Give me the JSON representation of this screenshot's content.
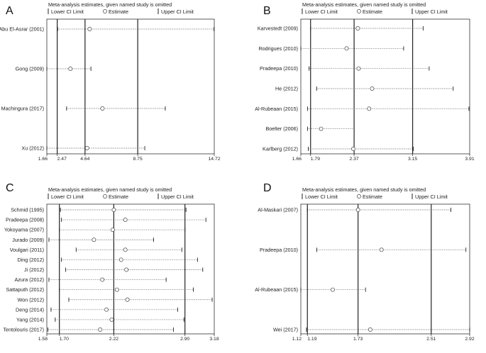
{
  "chart_data": [
    {
      "type": "sensitivity-forest",
      "panel_label": "A",
      "title": "Meta-analysis estimates, given named study is omitted",
      "legend": [
        "Lower CI Limit",
        "Estimate",
        "Upper CI Limit"
      ],
      "xlim": [
        1.66,
        14.72
      ],
      "tick_labels": [
        "1.66",
        "2.47",
        "4.64",
        "8.75",
        "14.72"
      ],
      "tick_values": [
        1.66,
        2.47,
        4.64,
        8.75,
        14.72
      ],
      "reference_lines": [
        2.47,
        4.64,
        8.75
      ],
      "studies": [
        {
          "name": "Abu El-Asrar (2001)",
          "estimate": 5.0,
          "lower": 2.5,
          "upper": 14.7
        },
        {
          "name": "Gong (2009)",
          "estimate": 3.5,
          "lower": 1.66,
          "upper": 5.1
        },
        {
          "name": "Machingura (2017)",
          "estimate": 6.0,
          "lower": 3.2,
          "upper": 10.9
        },
        {
          "name": "Xu (2012)",
          "estimate": 4.8,
          "lower": 1.66,
          "upper": 9.3
        }
      ]
    },
    {
      "type": "sensitivity-forest",
      "panel_label": "B",
      "title": "Meta-analysis estimates, given named study is omitted",
      "legend": [
        "Lower CI Limit",
        "Estimate",
        "Upper CI Limit"
      ],
      "xlim": [
        1.66,
        3.91
      ],
      "tick_labels": [
        "1.66",
        "1.79",
        "2.37",
        "3.15",
        "3.91"
      ],
      "tick_values": [
        1.66,
        1.79,
        2.37,
        3.15,
        3.91
      ],
      "reference_lines": [
        1.79,
        2.37,
        3.15
      ],
      "studies": [
        {
          "name": "Karvestedt (2009)",
          "estimate": 2.42,
          "lower": 1.79,
          "upper": 3.29
        },
        {
          "name": "Rodrigues (2010)",
          "estimate": 2.27,
          "lower": 1.66,
          "upper": 3.03
        },
        {
          "name": "Pradeepa (2010)",
          "estimate": 2.43,
          "lower": 1.77,
          "upper": 3.37
        },
        {
          "name": "He (2012)",
          "estimate": 2.61,
          "lower": 1.87,
          "upper": 3.69
        },
        {
          "name": "Al-Rubeaan (2015)",
          "estimate": 2.57,
          "lower": 1.75,
          "upper": 3.9
        },
        {
          "name": "Boelter (2006)",
          "estimate": 1.93,
          "lower": 1.75,
          "upper": 2.37
        },
        {
          "name": "Karlberg (2012)",
          "estimate": 2.36,
          "lower": 1.76,
          "upper": 3.16
        }
      ]
    },
    {
      "type": "sensitivity-forest",
      "panel_label": "C",
      "title": "Meta-analysis estimates, given named study is omitted",
      "legend": [
        "Lower CI Limit",
        "Estimate",
        "Upper CI Limit"
      ],
      "xlim": [
        1.58,
        3.18
      ],
      "tick_labels": [
        "1.58",
        "1.70",
        "2.22",
        "2.90",
        "3.18"
      ],
      "tick_values": [
        1.58,
        1.7,
        2.22,
        2.9,
        3.18
      ],
      "reference_lines": [
        1.7,
        2.22,
        2.9
      ],
      "studies": [
        {
          "name": "Schmid (1995)",
          "estimate": 2.22,
          "lower": 1.71,
          "upper": 2.91
        },
        {
          "name": "Pradeepa (2008)",
          "estimate": 2.33,
          "lower": 1.72,
          "upper": 3.1
        },
        {
          "name": "Yokoyama (2007)",
          "estimate": 2.21,
          "lower": 1.7,
          "upper": 2.9
        },
        {
          "name": "Jurado (2009)",
          "estimate": 2.03,
          "lower": 1.6,
          "upper": 2.6
        },
        {
          "name": "Voulgari (2011)",
          "estimate": 2.33,
          "lower": 1.86,
          "upper": 2.87
        },
        {
          "name": "Ding (2012)",
          "estimate": 2.29,
          "lower": 1.72,
          "upper": 3.02
        },
        {
          "name": "Ji (2012)",
          "estimate": 2.34,
          "lower": 1.76,
          "upper": 3.07
        },
        {
          "name": "Azura (2012)",
          "estimate": 2.11,
          "lower": 1.6,
          "upper": 2.72
        },
        {
          "name": "Sattaputh (2012)",
          "estimate": 2.25,
          "lower": 1.7,
          "upper": 2.98
        },
        {
          "name": "Won (2012)",
          "estimate": 2.35,
          "lower": 1.79,
          "upper": 3.16
        },
        {
          "name": "Deng (2014)",
          "estimate": 2.15,
          "lower": 1.62,
          "upper": 2.83
        },
        {
          "name": "Yang (2014)",
          "estimate": 2.2,
          "lower": 1.66,
          "upper": 2.89
        },
        {
          "name": "Tentolouris (2017)",
          "estimate": 2.09,
          "lower": 1.59,
          "upper": 2.79
        }
      ]
    },
    {
      "type": "sensitivity-forest",
      "panel_label": "D",
      "title": "Meta-analysis estimates, given named study is omitted",
      "legend": [
        "Lower CI Limit",
        "Estimate",
        "Upper CI Limit"
      ],
      "xlim": [
        1.12,
        2.92
      ],
      "tick_labels": [
        "1.12",
        "1.19",
        "1.73",
        "2.51",
        "2.92"
      ],
      "tick_values": [
        1.12,
        1.19,
        1.73,
        2.51,
        2.92
      ],
      "reference_lines": [
        1.19,
        1.73,
        2.51
      ],
      "studies": [
        {
          "name": "Al-Maskari (2007)",
          "estimate": 1.73,
          "lower": 1.19,
          "upper": 2.72
        },
        {
          "name": "Pradeepa (2010)",
          "estimate": 1.98,
          "lower": 1.29,
          "upper": 2.88
        },
        {
          "name": "Al-Rubeaan (2015)",
          "estimate": 1.46,
          "lower": 1.12,
          "upper": 1.81
        },
        {
          "name": "Wei (2017)",
          "estimate": 1.86,
          "lower": 1.18,
          "upper": 2.92
        }
      ]
    }
  ]
}
